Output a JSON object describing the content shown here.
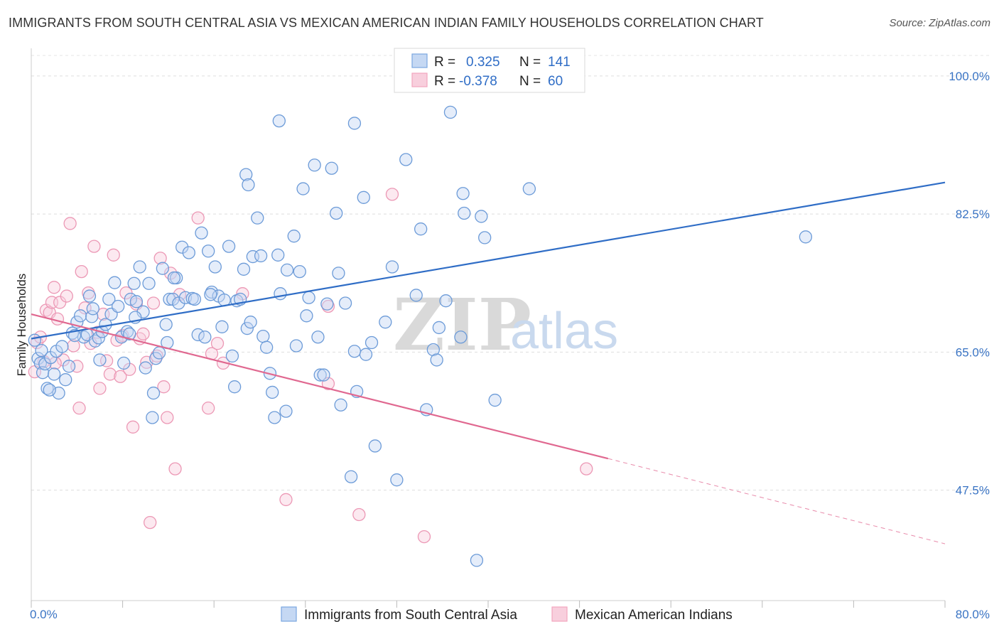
{
  "title": "IMMIGRANTS FROM SOUTH CENTRAL ASIA VS MEXICAN AMERICAN INDIAN FAMILY HOUSEHOLDS CORRELATION CHART",
  "source": "Source: ZipAtlas.com",
  "colors": {
    "blue": "#7aa7e0",
    "blue_line": "#2f6dc6",
    "pink": "#f2a5bf",
    "pink_line": "#e06890",
    "axis_text": "#3a74c4"
  },
  "legend_top": [
    {
      "r_label": "R = ",
      "r_value": "0.325",
      "n_label": "N = ",
      "n_value": "141"
    },
    {
      "r_label": "R = ",
      "r_value": "-0.378",
      "n_label": "N = ",
      "n_value": "60"
    }
  ],
  "watermark": {
    "zip": "ZIP",
    "atlas": "atlas"
  },
  "chart_data": {
    "type": "scatter",
    "title": "IMMIGRANTS FROM SOUTH CENTRAL ASIA VS MEXICAN AMERICAN INDIAN FAMILY HOUSEHOLDS CORRELATION CHART",
    "xlabel": "",
    "ylabel": "Family Households",
    "xlim": [
      0,
      80
    ],
    "ylim": [
      33.5,
      103.5
    ],
    "x_tick_labels": [
      "0.0%",
      "80.0%"
    ],
    "y_tick_values": [
      47.5,
      65.0,
      82.5,
      100.0
    ],
    "y_tick_labels": [
      "47.5%",
      "65.0%",
      "82.5%",
      "100.0%"
    ],
    "grid": true,
    "series": [
      {
        "name": "Immigrants from South Central Asia",
        "color": "#7aa7e0",
        "trend": {
          "x0": 0,
          "y0": 66.7,
          "x1": 80,
          "y1": 86.5
        },
        "points": [
          [
            0.3,
            66.5
          ],
          [
            0.6,
            64.2
          ],
          [
            0.8,
            63.6
          ],
          [
            1.0,
            62.4
          ],
          [
            1.2,
            63.5
          ],
          [
            1.4,
            60.4
          ],
          [
            1.7,
            64.3
          ],
          [
            2.0,
            62.2
          ],
          [
            2.2,
            65.1
          ],
          [
            2.4,
            59.8
          ],
          [
            2.7,
            65.7
          ],
          [
            3.0,
            61.5
          ],
          [
            3.3,
            63.2
          ],
          [
            3.6,
            67.4
          ],
          [
            4.0,
            68.8
          ],
          [
            4.3,
            69.6
          ],
          [
            4.6,
            66.9
          ],
          [
            4.9,
            67.2
          ],
          [
            5.1,
            72.1
          ],
          [
            5.3,
            69.5
          ],
          [
            5.6,
            66.4
          ],
          [
            5.9,
            66.8
          ],
          [
            6.2,
            67.6
          ],
          [
            6.5,
            68.5
          ],
          [
            6.8,
            71.7
          ],
          [
            7.0,
            69.8
          ],
          [
            7.3,
            73.8
          ],
          [
            7.6,
            70.8
          ],
          [
            7.9,
            66.9
          ],
          [
            8.1,
            63.6
          ],
          [
            8.4,
            67.6
          ],
          [
            8.7,
            71.7
          ],
          [
            9.0,
            73.7
          ],
          [
            9.2,
            71.4
          ],
          [
            9.5,
            75.8
          ],
          [
            9.8,
            70.1
          ],
          [
            10.0,
            63.0
          ],
          [
            10.3,
            73.7
          ],
          [
            10.6,
            56.7
          ],
          [
            10.9,
            64.2
          ],
          [
            11.2,
            64.9
          ],
          [
            11.5,
            75.6
          ],
          [
            11.8,
            68.5
          ],
          [
            12.1,
            71.7
          ],
          [
            12.4,
            71.7
          ],
          [
            12.7,
            74.4
          ],
          [
            12.9,
            71.2
          ],
          [
            13.2,
            78.3
          ],
          [
            13.5,
            71.9
          ],
          [
            13.8,
            77.6
          ],
          [
            14.1,
            71.8
          ],
          [
            14.3,
            71.7
          ],
          [
            14.6,
            67.2
          ],
          [
            14.9,
            80.1
          ],
          [
            15.2,
            66.9
          ],
          [
            15.5,
            77.8
          ],
          [
            15.8,
            72.6
          ],
          [
            16.1,
            75.8
          ],
          [
            16.4,
            72.1
          ],
          [
            16.7,
            68.2
          ],
          [
            16.9,
            71.6
          ],
          [
            17.3,
            78.4
          ],
          [
            17.6,
            64.5
          ],
          [
            17.8,
            60.6
          ],
          [
            18.0,
            71.5
          ],
          [
            18.3,
            71.7
          ],
          [
            18.6,
            75.5
          ],
          [
            18.9,
            68.0
          ],
          [
            19.2,
            68.8
          ],
          [
            19.4,
            77.1
          ],
          [
            19.8,
            82.0
          ],
          [
            20.1,
            77.2
          ],
          [
            20.3,
            67.0
          ],
          [
            20.6,
            65.6
          ],
          [
            20.9,
            62.3
          ],
          [
            21.1,
            59.9
          ],
          [
            21.3,
            56.7
          ],
          [
            21.6,
            77.3
          ],
          [
            21.8,
            72.4
          ],
          [
            22.3,
            57.5
          ],
          [
            22.4,
            75.4
          ],
          [
            23.0,
            79.7
          ],
          [
            23.5,
            75.2
          ],
          [
            23.8,
            85.7
          ],
          [
            24.1,
            69.6
          ],
          [
            24.3,
            71.9
          ],
          [
            24.8,
            88.7
          ],
          [
            25.1,
            66.9
          ],
          [
            25.3,
            62.1
          ],
          [
            25.6,
            62.1
          ],
          [
            25.9,
            71.1
          ],
          [
            26.3,
            88.3
          ],
          [
            26.7,
            82.6
          ],
          [
            26.9,
            75.0
          ],
          [
            27.1,
            58.3
          ],
          [
            27.5,
            71.2
          ],
          [
            28.0,
            49.2
          ],
          [
            28.3,
            65.1
          ],
          [
            28.5,
            60.0
          ],
          [
            29.1,
            84.6
          ],
          [
            29.3,
            64.7
          ],
          [
            29.8,
            66.2
          ],
          [
            30.1,
            53.1
          ],
          [
            31.0,
            68.8
          ],
          [
            31.6,
            75.8
          ],
          [
            32.8,
            89.4
          ],
          [
            32.0,
            48.8
          ],
          [
            33.7,
            72.2
          ],
          [
            34.1,
            80.6
          ],
          [
            34.6,
            57.7
          ],
          [
            35.2,
            65.3
          ],
          [
            35.5,
            64.0
          ],
          [
            35.7,
            68.1
          ],
          [
            36.3,
            71.5
          ],
          [
            36.7,
            95.4
          ],
          [
            37.6,
            66.9
          ],
          [
            37.8,
            85.1
          ],
          [
            37.9,
            82.6
          ],
          [
            39.4,
            82.2
          ],
          [
            39.0,
            38.6
          ],
          [
            39.7,
            79.5
          ],
          [
            43.6,
            85.7
          ],
          [
            67.8,
            79.6
          ],
          [
            21.7,
            94.3
          ],
          [
            28.3,
            94.0
          ],
          [
            40.6,
            58.9
          ],
          [
            10.7,
            59.8
          ],
          [
            18.8,
            87.5
          ],
          [
            19.0,
            86.2
          ],
          [
            12.5,
            74.4
          ],
          [
            9.1,
            69.4
          ],
          [
            3.8,
            67.1
          ],
          [
            6.0,
            64.0
          ],
          [
            1.6,
            60.2
          ],
          [
            0.9,
            65.2
          ],
          [
            5.4,
            70.5
          ],
          [
            8.6,
            67.3
          ],
          [
            11.9,
            66.2
          ],
          [
            15.7,
            72.3
          ],
          [
            23.2,
            65.8
          ]
        ]
      },
      {
        "name": "Mexican American Indians",
        "color": "#f2a5bf",
        "trend": {
          "x0": 0,
          "y0": 69.8,
          "x1": 50.5,
          "y1": 51.5,
          "dash_to_x": 80,
          "dash_to_y": 40.7
        },
        "points": [
          [
            0.3,
            62.5
          ],
          [
            0.5,
            66.2
          ],
          [
            0.8,
            66.9
          ],
          [
            1.1,
            63.8
          ],
          [
            1.3,
            70.3
          ],
          [
            1.6,
            70.0
          ],
          [
            1.8,
            71.3
          ],
          [
            2.0,
            73.2
          ],
          [
            2.3,
            69.2
          ],
          [
            2.5,
            71.3
          ],
          [
            2.8,
            64.0
          ],
          [
            3.1,
            72.1
          ],
          [
            3.4,
            81.3
          ],
          [
            3.7,
            65.8
          ],
          [
            4.0,
            63.2
          ],
          [
            4.2,
            57.9
          ],
          [
            4.4,
            75.2
          ],
          [
            4.7,
            70.6
          ],
          [
            5.0,
            72.5
          ],
          [
            5.2,
            66.1
          ],
          [
            5.5,
            78.4
          ],
          [
            5.8,
            67.5
          ],
          [
            6.0,
            60.4
          ],
          [
            6.3,
            69.8
          ],
          [
            6.6,
            63.9
          ],
          [
            6.9,
            62.2
          ],
          [
            7.2,
            77.3
          ],
          [
            7.5,
            66.5
          ],
          [
            7.8,
            61.9
          ],
          [
            8.0,
            67.1
          ],
          [
            8.3,
            72.5
          ],
          [
            8.6,
            62.8
          ],
          [
            8.9,
            55.5
          ],
          [
            9.2,
            71.1
          ],
          [
            9.5,
            66.7
          ],
          [
            9.8,
            67.3
          ],
          [
            10.1,
            63.7
          ],
          [
            10.4,
            43.4
          ],
          [
            10.7,
            71.2
          ],
          [
            11.0,
            64.5
          ],
          [
            11.3,
            76.9
          ],
          [
            11.6,
            60.6
          ],
          [
            11.9,
            56.7
          ],
          [
            12.2,
            75.0
          ],
          [
            12.6,
            50.2
          ],
          [
            13.0,
            72.3
          ],
          [
            14.6,
            82.0
          ],
          [
            15.5,
            57.9
          ],
          [
            15.8,
            64.8
          ],
          [
            16.3,
            66.1
          ],
          [
            16.8,
            63.6
          ],
          [
            18.5,
            72.4
          ],
          [
            22.3,
            46.3
          ],
          [
            28.7,
            44.4
          ],
          [
            31.6,
            85.0
          ],
          [
            34.4,
            41.6
          ],
          [
            26.0,
            70.8
          ],
          [
            26.0,
            61.0
          ],
          [
            48.6,
            50.2
          ],
          [
            2.1,
            63.6
          ]
        ]
      }
    ]
  },
  "bottom_legend": [
    "Immigrants from South Central Asia",
    "Mexican American Indians"
  ]
}
